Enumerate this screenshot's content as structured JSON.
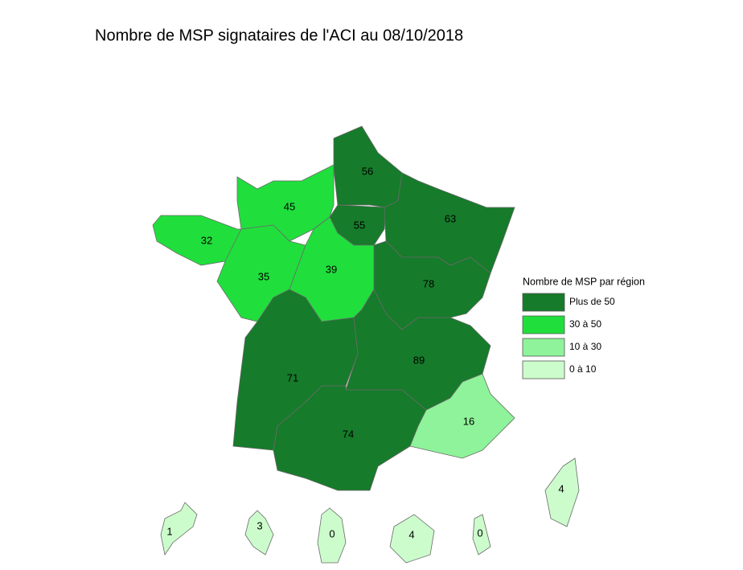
{
  "title": "Nombre de MSP signataires de l'ACI au 08/10/2018",
  "legend": {
    "title": "Nombre de MSP par région",
    "items": [
      {
        "label": "Plus de 50",
        "color": "#167b2a"
      },
      {
        "label": "30  à  50",
        "color": "#20df3c"
      },
      {
        "label": "10  à  30",
        "color": "#8ef39a"
      },
      {
        "label": "0  à 10",
        "color": "#ccfccc"
      }
    ]
  },
  "regions": [
    {
      "value": 56,
      "color": "#167b2a"
    },
    {
      "value": 55,
      "color": "#167b2a"
    },
    {
      "value": 63,
      "color": "#167b2a"
    },
    {
      "value": 45,
      "color": "#20df3c"
    },
    {
      "value": 32,
      "color": "#20df3c"
    },
    {
      "value": 35,
      "color": "#20df3c"
    },
    {
      "value": 39,
      "color": "#20df3c"
    },
    {
      "value": 78,
      "color": "#167b2a"
    },
    {
      "value": 71,
      "color": "#167b2a"
    },
    {
      "value": 89,
      "color": "#167b2a"
    },
    {
      "value": 74,
      "color": "#167b2a"
    },
    {
      "value": 16,
      "color": "#8ef39a"
    },
    {
      "value": 4,
      "color": "#ccfccc"
    },
    {
      "value": 1,
      "color": "#ccfccc"
    },
    {
      "value": 3,
      "color": "#ccfccc"
    },
    {
      "value": 0,
      "color": "#ccfccc"
    },
    {
      "value": 4,
      "color": "#ccfccc"
    },
    {
      "value": 0,
      "color": "#ccfccc"
    }
  ]
}
